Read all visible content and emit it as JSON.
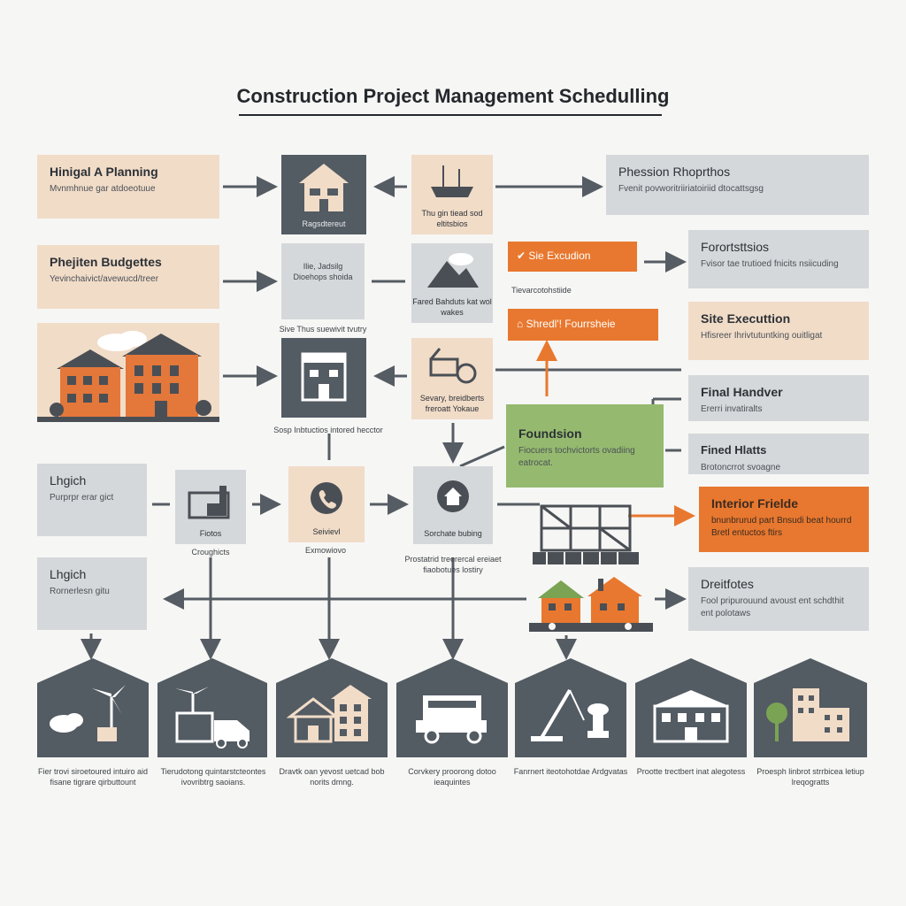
{
  "title": "Construction Project Management Schedulling",
  "left_boxes": [
    {
      "heading": "Hinigal A Planning",
      "sub": "Mvnmhnue gar atdoeotuue"
    },
    {
      "heading": "Phejiten Budgettes",
      "sub": "Yevinchaivict/avewucd/treer"
    },
    {
      "heading": "Lhgich",
      "sub": "Purprpr erar gict"
    },
    {
      "heading": "Lhgich",
      "sub": "Rornerlesn gitu"
    }
  ],
  "right_boxes": [
    {
      "heading": "Phession Rhoprthos",
      "sub": "Fvenit povworitriiriatoiriid dtocattsgsg"
    },
    {
      "heading": "Forortsttsios",
      "sub": "Fvisor tae trutioed fnicits nsiicuding"
    },
    {
      "heading": "Site Executtion",
      "sub": "Hfisreer Ihrivtutuntking ouitligat"
    },
    {
      "heading": "Final Handver",
      "sub": "Ererri invatiralts"
    },
    {
      "heading": "Fined Hlatts",
      "sub": "Brotoncrrot svoagne"
    },
    {
      "heading": "Dreitfotes",
      "sub": "Fool pripurouund avoust ent schdthit ent polotaws"
    }
  ],
  "interior_box": {
    "heading": "Interior Frielde",
    "sub": "bnunbrurud part Bnsudi beat hourrd Bretl entuctos ftirs"
  },
  "foundation_box": {
    "heading": "Foundsion",
    "sub": "Fiocuers tochvictorts ovadiing eatrocat."
  },
  "tags": [
    {
      "label": "Sie Excudion",
      "sub": "Tievarcotohstiide"
    },
    {
      "label": "Shredl'! Fourrsheie"
    }
  ],
  "tiles": [
    {
      "caption": "Ragsdtereut",
      "below": ""
    },
    {
      "caption": "Ilie, Jadsilg Dioehops shoida",
      "below": "Sive Thus suewivit tvutry"
    },
    {
      "caption": "Thu gin tiead sod eltitsbios",
      "below": ""
    },
    {
      "caption": "Fared Bahduts kat wol wakes",
      "below": ""
    },
    {
      "caption": "",
      "below": "Sosp Inbtuctios intored hecctor"
    },
    {
      "caption": "Sevary, breidberts freroatt Yokaue",
      "below": ""
    },
    {
      "caption": "Fiotos",
      "below": "Croughicts"
    },
    {
      "caption": "Seivievl",
      "below": "Exmowiovo"
    },
    {
      "caption": "Sorchate bubing",
      "below": "Prostatrid treorercal ereiaet fiaobotues lostiry"
    }
  ],
  "bottom_captions": [
    "Fier trovi siroetoured intuiro aid fisane tigrare qirbuttount",
    "Tierudotong quintarstcteontes ivovribtrg saoians.",
    "Dravtk oan yevost uetcad bob norits dmng.",
    "Corvkery proorong dotoo ieaquintes",
    "Fanrnert iteotohotdae Ardgvatas",
    "Prootte trectbert inat alegotess",
    "Proesph linbrot strrbicea letiup lreqogratts"
  ],
  "colors": {
    "peach": "#f1dcc8",
    "grey": "#d5d8da",
    "orange": "#e8782f",
    "green": "#95ba6f",
    "dark": "#535b63",
    "arrow": "#555c63"
  },
  "icons": [
    "house-icon",
    "ship-icon",
    "mountain-icon",
    "building-icon",
    "cart-icon",
    "factory-icon",
    "phone-icon",
    "home-badge-icon",
    "scaffold-icon",
    "houses-icon",
    "wind-turbine-icon",
    "truck-icon",
    "van-icon",
    "crane-icon",
    "tree-icon"
  ]
}
